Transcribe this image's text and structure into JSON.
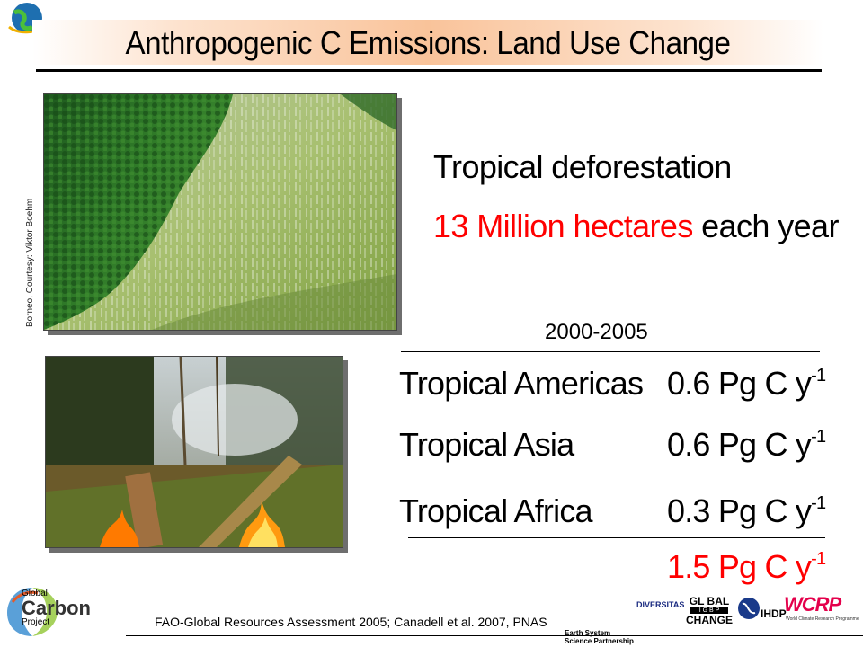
{
  "slide": {
    "title": "Anthropogenic C Emissions: Land Use Change",
    "photo_credit": "Borneo, Courtesy: Viktor Boehm",
    "headline": "Tropical deforestation",
    "rate": {
      "highlight": "13 Million hectares",
      "rest": " each year"
    },
    "period": "2000-2005",
    "regions": [
      {
        "label": "Tropical Americas",
        "value": "0.6 Pg C y",
        "exponent": "-1"
      },
      {
        "label": "Tropical Asia",
        "value": "0.6 Pg C y",
        "exponent": "-1"
      },
      {
        "label": "Tropical Africa",
        "value": "0.3 Pg C y",
        "exponent": "-1"
      }
    ],
    "total": {
      "value": "1.5 Pg C y",
      "exponent": "-1"
    },
    "citation": "FAO-Global Resources Assessment 2005; Canadell et al. 2007, PNAS"
  },
  "logos": {
    "gcp": {
      "line1": "Global",
      "line2": "Carbon",
      "line3": "Project"
    },
    "essp": {
      "line1": "Earth System",
      "line2": "Science Partnership"
    },
    "diversitas": "DIVERSITAS",
    "global_change": {
      "top": "GL BAL",
      "middle": "I G B P",
      "bottom": "CHANGE"
    },
    "ihdp": "IHDP",
    "wcrp": "WCRP",
    "wcrp_sub": "World Climate Research Programme"
  },
  "colors": {
    "accent_red": "#ff0000",
    "title_band": "#f9c39a",
    "wcrp": "#e4004b"
  }
}
